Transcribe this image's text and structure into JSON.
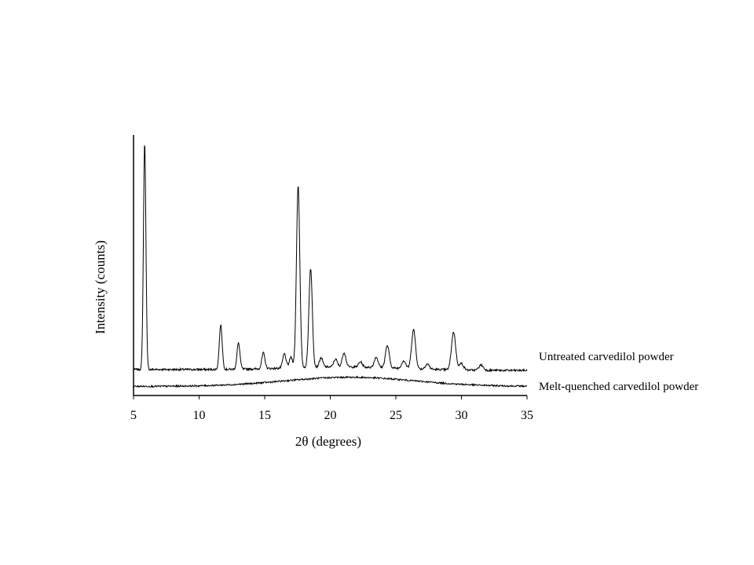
{
  "chart_data": {
    "type": "line",
    "xlabel": "2θ (degrees)",
    "ylabel": "Intensity (counts)",
    "xlim": [
      5,
      35
    ],
    "xticks": [
      5,
      10,
      15,
      20,
      25,
      30,
      35
    ],
    "y_tick_labels": false,
    "grid": false,
    "y_units": "relative intensity (arbitrary, stacked traces)",
    "series": [
      {
        "name": "Untreated carvedilol powder",
        "baseline": 0.1,
        "peaks": [
          {
            "x": 5.85,
            "height": 0.87
          },
          {
            "x": 11.65,
            "height": 0.17
          },
          {
            "x": 13.0,
            "height": 0.1
          },
          {
            "x": 14.9,
            "height": 0.06
          },
          {
            "x": 16.5,
            "height": 0.055
          },
          {
            "x": 17.0,
            "height": 0.04
          },
          {
            "x": 17.55,
            "height": 0.7
          },
          {
            "x": 18.5,
            "height": 0.38
          },
          {
            "x": 19.3,
            "height": 0.035
          },
          {
            "x": 20.4,
            "height": 0.03
          },
          {
            "x": 21.05,
            "height": 0.055
          },
          {
            "x": 22.3,
            "height": 0.02
          },
          {
            "x": 23.5,
            "height": 0.04
          },
          {
            "x": 24.35,
            "height": 0.085
          },
          {
            "x": 25.6,
            "height": 0.03
          },
          {
            "x": 26.35,
            "height": 0.15
          },
          {
            "x": 27.4,
            "height": 0.02
          },
          {
            "x": 29.4,
            "height": 0.145
          },
          {
            "x": 30.0,
            "height": 0.025
          },
          {
            "x": 31.5,
            "height": 0.02
          }
        ]
      },
      {
        "name": "Melt-quenched carvedilol powder",
        "baseline": 0.035,
        "halo": {
          "center": 21.5,
          "height": 0.035
        }
      }
    ]
  }
}
